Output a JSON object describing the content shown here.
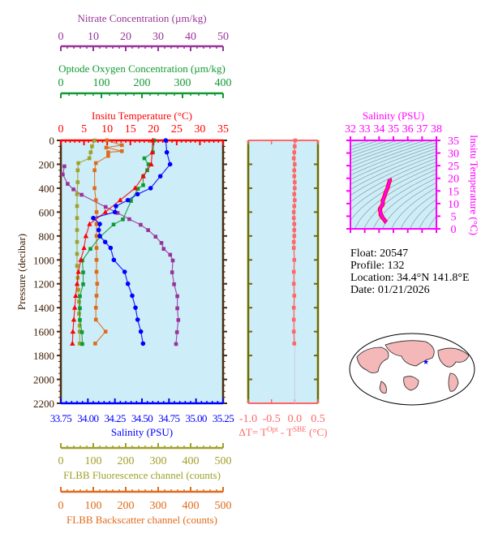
{
  "chart_data": [
    {
      "type": "line",
      "panel": "profile",
      "ylabel": "Pressure (decibar)",
      "ylim": [
        0,
        2200
      ],
      "yticks": [
        0,
        200,
        400,
        600,
        800,
        1000,
        1200,
        1400,
        1600,
        1800,
        2000,
        2200
      ],
      "grid": false,
      "axes": [
        {
          "key": "nitrate",
          "label": "Nitrate Concentration (µm/kg)",
          "range": [
            0,
            50
          ],
          "ticks": [
            0,
            10,
            20,
            30,
            40,
            50
          ],
          "color": "#993399",
          "position": "top"
        },
        {
          "key": "oxygen",
          "label": "Optode Oxygen Concentration (µm/kg)",
          "range": [
            0,
            400
          ],
          "ticks": [
            0,
            100,
            200,
            300,
            400
          ],
          "color": "#119933",
          "position": "top"
        },
        {
          "key": "temperature",
          "label": "Insitu Temperature (°C)",
          "range": [
            0,
            35
          ],
          "ticks": [
            0,
            5,
            10,
            15,
            20,
            25,
            30,
            35
          ],
          "color": "#ff0000",
          "position": "top"
        },
        {
          "key": "salinity",
          "label": "Salinity (PSU)",
          "range": [
            33.75,
            35.25
          ],
          "ticks": [
            "33.75",
            "34.00",
            "34.25",
            "34.50",
            "34.75",
            "35.00",
            "35.25"
          ],
          "color": "#0000ff",
          "position": "bottom"
        },
        {
          "key": "fluorescence",
          "label": "FLBB Fluorescence channel (counts)",
          "range": [
            0,
            500
          ],
          "ticks": [
            0,
            100,
            200,
            300,
            400,
            500
          ],
          "color": "#a0a02a",
          "position": "bottom"
        },
        {
          "key": "backscatter",
          "label": "FLBB Backscatter channel (counts)",
          "range": [
            0,
            500
          ],
          "ticks": [
            0,
            100,
            200,
            300,
            400,
            500
          ],
          "color": "#e06a1a",
          "position": "bottom"
        }
      ],
      "series": [
        {
          "key": "temperature",
          "marker": "triangle",
          "pressure": [
            0,
            100,
            200,
            300,
            400,
            500,
            600,
            700,
            800,
            900,
            1000,
            1100,
            1200,
            1300,
            1400,
            1500,
            1600,
            1700
          ],
          "values": [
            19.8,
            19.7,
            19.5,
            17.8,
            16,
            12.8,
            9.6,
            6.2,
            5.4,
            5.0,
            4.3,
            3.8,
            3.5,
            3.2,
            3.0,
            2.8,
            2.6,
            2.5
          ]
        },
        {
          "key": "salinity",
          "marker": "circle",
          "pressure": [
            0,
            100,
            200,
            300,
            400,
            450,
            500,
            550,
            600,
            650,
            700,
            750,
            800,
            850,
            900,
            1000,
            1100,
            1200,
            1300,
            1400,
            1500,
            1600,
            1700
          ],
          "values": [
            34.72,
            34.73,
            34.76,
            34.67,
            34.58,
            34.46,
            34.37,
            34.26,
            34.25,
            34.05,
            34.11,
            34.1,
            34.11,
            34.16,
            34.21,
            34.24,
            34.34,
            34.37,
            34.41,
            34.44,
            34.46,
            34.49,
            34.51
          ]
        },
        {
          "key": "oxygen",
          "marker": "square",
          "pressure": [
            0,
            100,
            150,
            200,
            250,
            300,
            375,
            405,
            507,
            661,
            704,
            806,
            908,
            1005,
            1104,
            1204,
            1304,
            1405,
            1503,
            1605,
            1704
          ],
          "values": [
            230,
            227,
            206,
            216,
            213,
            203,
            203,
            190,
            173,
            153,
            130,
            97,
            73,
            53,
            55,
            55,
            47,
            47,
            47,
            52,
            53
          ]
        },
        {
          "key": "nitrate",
          "marker": "square",
          "pressure": [
            217,
            285,
            364,
            410,
            455,
            557,
            607,
            659,
            706,
            751,
            806,
            858,
            908,
            957,
            1005,
            1104,
            1204,
            1304,
            1405,
            1503,
            1605,
            1704
          ],
          "values": [
            1.1,
            0.6,
            2.1,
            3.9,
            6.4,
            13.8,
            17.5,
            21.1,
            24.6,
            26.9,
            29.2,
            31,
            31.7,
            33.7,
            34.5,
            34.3,
            34.9,
            35.9,
            35.9,
            36.2,
            35.8,
            35.5
          ]
        },
        {
          "key": "fluorescence",
          "marker": "square",
          "pressure": [
            0,
            50,
            100,
            150,
            190,
            250,
            350,
            450,
            550,
            650,
            750,
            850,
            950,
            1050,
            1150,
            1250,
            1350,
            1450,
            1550,
            1600,
            1700
          ],
          "values": [
            104,
            96,
            92,
            88,
            54,
            52,
            52,
            50,
            50,
            50,
            50,
            50,
            50,
            50,
            52,
            54,
            56,
            56,
            58,
            58,
            58
          ]
        },
        {
          "key": "backscatter",
          "marker": "square",
          "pressure": [
            0,
            40,
            60,
            90,
            100,
            130,
            190,
            250,
            400,
            500,
            600,
            700,
            800,
            900,
            1000,
            1100,
            1200,
            1300,
            1400,
            1500,
            1600,
            1700
          ],
          "values": [
            142,
            188,
            140,
            188,
            146,
            146,
            108,
            104,
            104,
            108,
            110,
            110,
            110,
            110,
            110,
            110,
            112,
            110,
            108,
            108,
            138,
            106
          ]
        }
      ]
    },
    {
      "type": "line",
      "panel": "delta-t",
      "xlabel": "ΔT= T^Opt - T^SBE (°C)",
      "xlabel_parts": {
        "prefix": "ΔT= T",
        "sup1": "Opt",
        "mid": " - T",
        "sup2": "SBE",
        "suffix": " (°C)"
      },
      "xlim": [
        -1.0,
        0.5
      ],
      "xticks": [
        "-1.0",
        "-0.5",
        "0.0",
        "0.5"
      ],
      "ylim": [
        0,
        2200
      ],
      "color": "#ff6666",
      "pressure": [
        0,
        50,
        100,
        150,
        200,
        250,
        300,
        350,
        400,
        450,
        500,
        550,
        600,
        650,
        700,
        750,
        800,
        850,
        900,
        1000,
        1100,
        1200,
        1300,
        1400,
        1500,
        1600,
        1700
      ],
      "values": [
        0.01,
        0.0,
        -0.01,
        -0.02,
        0.0,
        -0.01,
        -0.01,
        0.0,
        0.0,
        -0.01,
        0.0,
        -0.01,
        -0.02,
        -0.02,
        -0.01,
        -0.01,
        -0.01,
        -0.02,
        -0.02,
        -0.01,
        -0.02,
        -0.02,
        -0.01,
        -0.02,
        -0.02,
        -0.02,
        -0.01
      ]
    },
    {
      "type": "scatter",
      "panel": "ts-diagram",
      "xlabel": "Salinity (PSU)",
      "ylabel": "Insitu Temperature (°C)",
      "xlim": [
        32,
        38
      ],
      "ylim": [
        0,
        35
      ],
      "xticks": [
        32,
        33,
        34,
        35,
        36,
        37,
        38
      ],
      "yticks": [
        0,
        5,
        10,
        15,
        20,
        25,
        30,
        35
      ],
      "color": "#ff00ff",
      "contours": "density isopycnals"
    }
  ],
  "info": {
    "float": "Float:  20547",
    "profile": "Profile:  132",
    "location": "Location:  34.4°N  141.8°E",
    "date": "Date:  01/21/2026"
  },
  "colors": {
    "plot_bg": "#cdeef8",
    "frame": "#4a2a10",
    "pressure_label": "#3a1a00",
    "delta": "#ff6666",
    "ts": "#ff00ff"
  },
  "map": {
    "icon": "world-map-icon"
  }
}
